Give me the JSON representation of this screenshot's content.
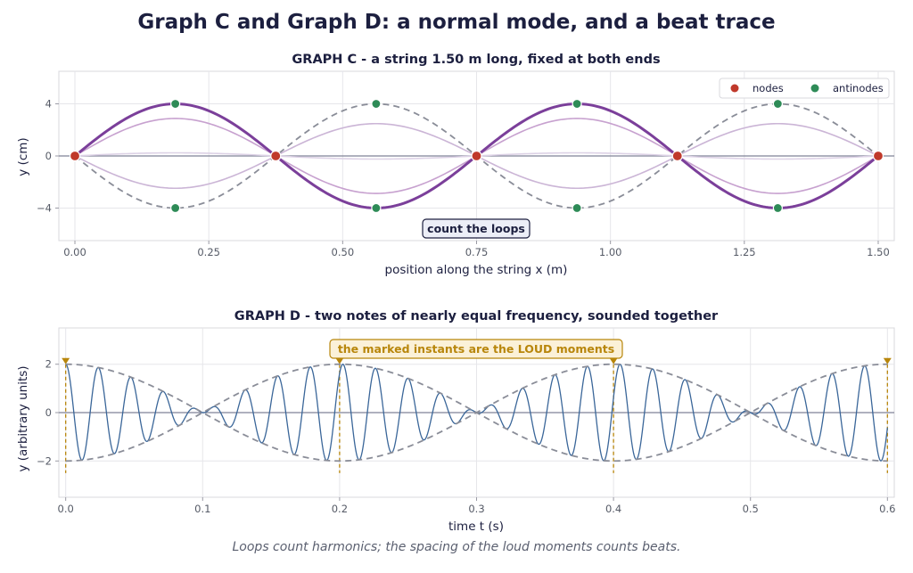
{
  "title": "Graph C and Graph D: a normal mode, and a beat trace",
  "caption": "Loops count harmonics; the spacing of the loud moments counts beats.",
  "colors": {
    "mode": "#7b3f9a",
    "mode_mid": "#c7a1cf",
    "mode_faint": "#ddd2e6",
    "envelope": "#8a8d98",
    "node": "#c0392b",
    "antinode": "#2e8b57",
    "wave": "#3a6699",
    "loud": "#b8860b",
    "axis_text": "#555a66",
    "grid": "#e6e6ea"
  },
  "chart_data": [
    {
      "id": "graph-c",
      "type": "line",
      "title": "GRAPH C   -   a string 1.50 m long, fixed at both ends",
      "xlabel": "position along the string  x  (m)",
      "ylabel": "y  (cm)",
      "xlim": [
        -0.03,
        1.53
      ],
      "ylim": [
        -6.5,
        6.5
      ],
      "xticks": [
        0.0,
        0.25,
        0.5,
        0.75,
        1.0,
        1.25,
        1.5
      ],
      "xtick_labels": [
        "0.00",
        "0.25",
        "0.50",
        "0.75",
        "1.00",
        "1.25",
        "1.50"
      ],
      "yticks": [
        -4,
        0,
        4
      ],
      "ytick_labels": [
        "−4",
        "0",
        "4"
      ],
      "grid": true,
      "string_length": 1.5,
      "loops": 4,
      "amplitude": 4,
      "snapshot_factors": [
        1.0,
        0.72,
        0.06,
        -0.62
      ],
      "nodes_x": [
        0.0,
        0.375,
        0.75,
        1.125,
        1.5
      ],
      "antinodes": [
        {
          "x": 0.1875,
          "y": 4
        },
        {
          "x": 0.1875,
          "y": -4
        },
        {
          "x": 0.5625,
          "y": 4
        },
        {
          "x": 0.5625,
          "y": -4
        },
        {
          "x": 0.9375,
          "y": 4
        },
        {
          "x": 0.9375,
          "y": -4
        },
        {
          "x": 1.3125,
          "y": 4
        },
        {
          "x": 1.3125,
          "y": -4
        }
      ],
      "legend": {
        "position": "top-right",
        "entries": [
          "nodes",
          "antinodes"
        ]
      },
      "annotation": "count the loops"
    },
    {
      "id": "graph-d",
      "type": "line",
      "title": "GRAPH D   -   two notes of nearly equal frequency, sounded together",
      "xlabel": "time  t  (s)",
      "ylabel": "y  (arbitrary units)",
      "xlim": [
        -0.005,
        0.605
      ],
      "ylim": [
        -3.5,
        3.5
      ],
      "xticks": [
        0.0,
        0.1,
        0.2,
        0.3,
        0.4,
        0.5,
        0.6
      ],
      "xtick_labels": [
        "0.0",
        "0.1",
        "0.2",
        "0.3",
        "0.4",
        "0.5",
        "0.6"
      ],
      "yticks": [
        -2,
        0,
        2
      ],
      "ytick_labels": [
        "−2",
        "0",
        "2"
      ],
      "grid": true,
      "envelope_amplitude": 2,
      "beat_period": 0.2,
      "carrier_frequency": 42,
      "loud_moments": [
        0.0,
        0.2,
        0.4,
        0.6
      ],
      "annotation": "the marked instants are the LOUD moments"
    }
  ]
}
